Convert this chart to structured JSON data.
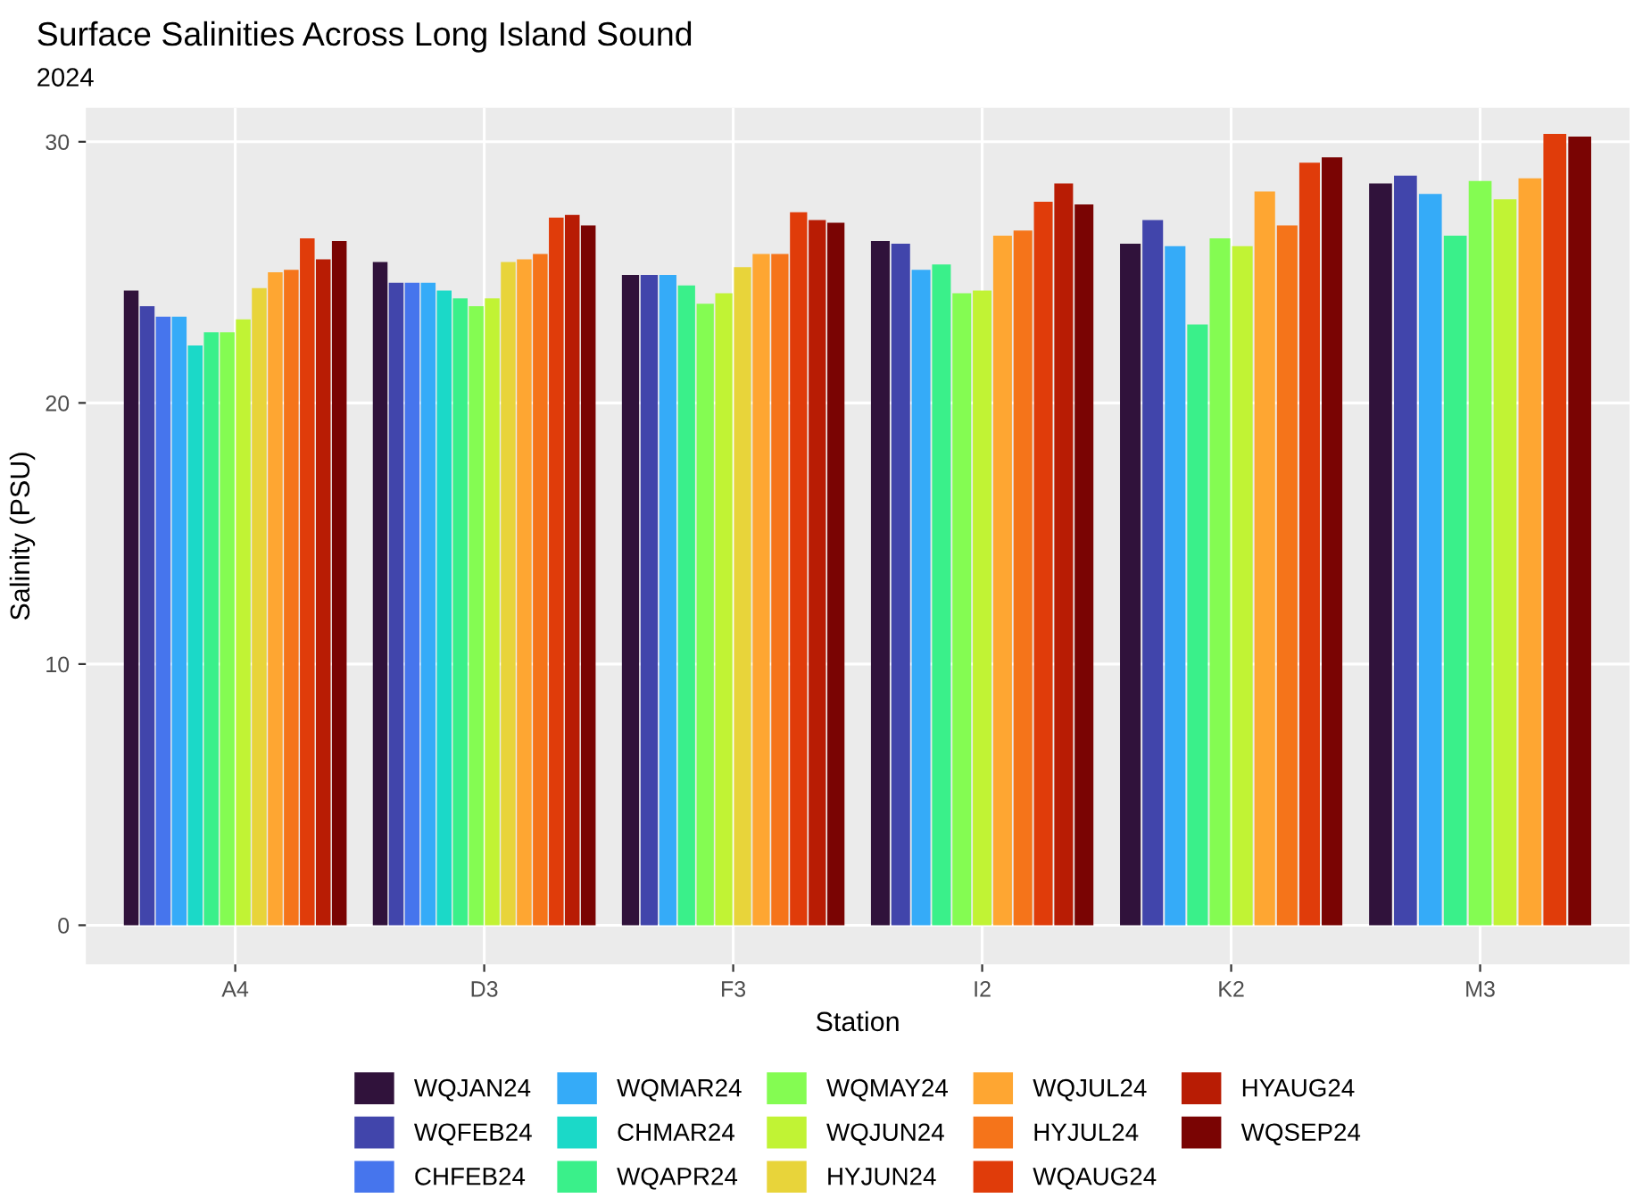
{
  "chart_data": {
    "type": "bar",
    "title": "Surface Salinities Across Long Island Sound",
    "subtitle": "2024",
    "xlabel": "Station",
    "ylabel": "Salinity (PSU)",
    "categories": [
      "A4",
      "D3",
      "F3",
      "I2",
      "K2",
      "M3"
    ],
    "ylim": [
      -1.5,
      31.3
    ],
    "yticks": [
      0,
      10,
      20,
      30
    ],
    "grid": true,
    "legend": "bottom",
    "series": [
      {
        "name": "WQJAN24",
        "color": "#30123b",
        "values": [
          24.3,
          25.4,
          24.9,
          26.2,
          26.1,
          28.4
        ]
      },
      {
        "name": "WQFEB24",
        "color": "#4145ab",
        "values": [
          23.7,
          24.6,
          24.9,
          26.1,
          27.0,
          28.7
        ]
      },
      {
        "name": "CHFEB24",
        "color": "#4675ed",
        "values": [
          23.3,
          24.6,
          null,
          null,
          null,
          null
        ]
      },
      {
        "name": "WQMAR24",
        "color": "#35abf8",
        "values": [
          23.3,
          24.6,
          24.9,
          25.1,
          26.0,
          28.0
        ]
      },
      {
        "name": "CHMAR24",
        "color": "#1bd9c8",
        "values": [
          22.2,
          24.3,
          null,
          null,
          null,
          null
        ]
      },
      {
        "name": "WQAPR24",
        "color": "#3af08a",
        "values": [
          22.7,
          24.0,
          24.5,
          25.3,
          23.0,
          26.4
        ]
      },
      {
        "name": "WQMAY24",
        "color": "#84fc52",
        "values": [
          22.7,
          23.7,
          23.8,
          24.2,
          26.3,
          28.5
        ]
      },
      {
        "name": "WQJUN24",
        "color": "#c1f334",
        "values": [
          23.2,
          24.0,
          24.2,
          24.3,
          26.0,
          27.8
        ]
      },
      {
        "name": "HYJUN24",
        "color": "#e8d43a",
        "values": [
          24.4,
          25.4,
          25.2,
          null,
          null,
          null
        ]
      },
      {
        "name": "WQJUL24",
        "color": "#fea632",
        "values": [
          25.0,
          25.5,
          25.7,
          26.4,
          28.1,
          28.6
        ]
      },
      {
        "name": "HYJUL24",
        "color": "#f5741a",
        "values": [
          25.1,
          25.7,
          25.7,
          26.6,
          26.8,
          null
        ]
      },
      {
        "name": "WQAUG24",
        "color": "#e03c0a",
        "values": [
          26.3,
          27.1,
          27.3,
          27.7,
          29.2,
          30.3
        ]
      },
      {
        "name": "HYAUG24",
        "color": "#b81c04",
        "values": [
          25.5,
          27.2,
          27.0,
          28.4,
          null,
          null
        ]
      },
      {
        "name": "WQSEP24",
        "color": "#7a0403",
        "values": [
          26.2,
          26.8,
          26.9,
          27.6,
          29.4,
          30.2
        ]
      }
    ]
  }
}
